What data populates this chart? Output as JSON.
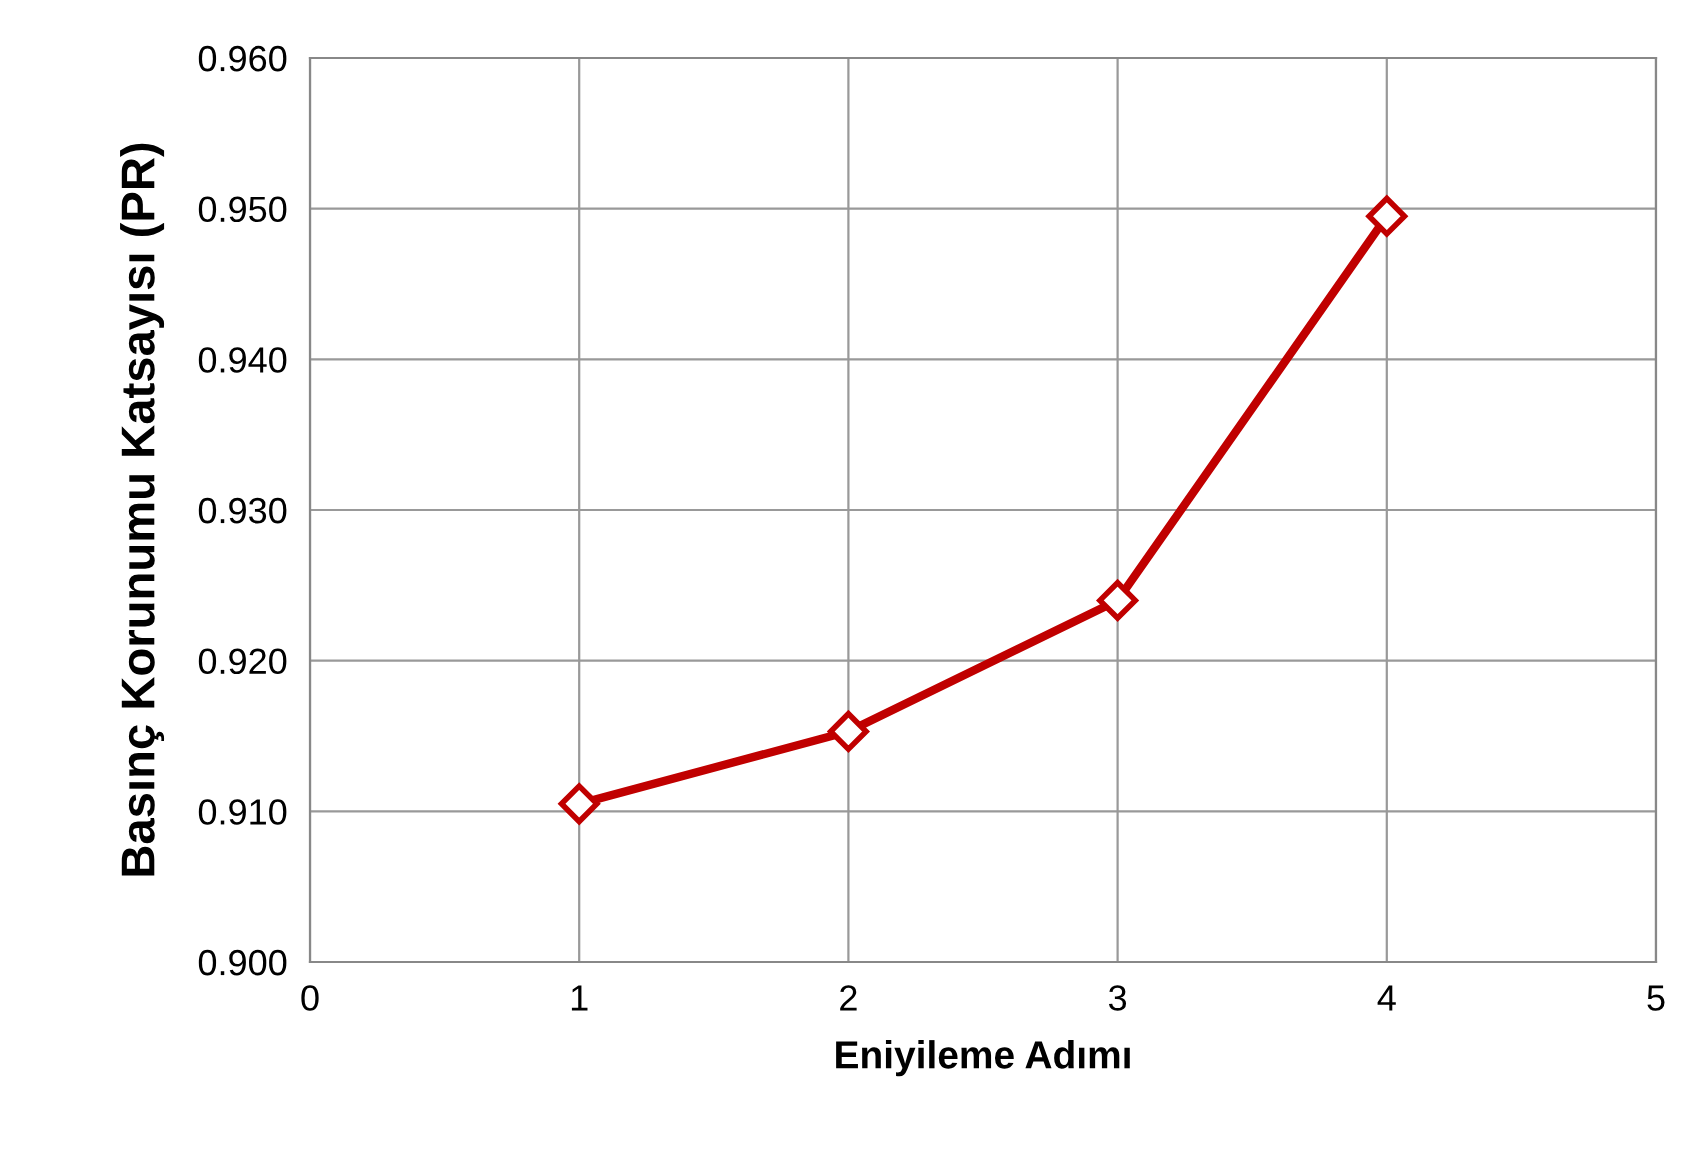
{
  "chart_data": {
    "type": "line",
    "xlabel": "Eniyileme Adımı",
    "ylabel": "Basınç Korunumu Katsayısı (PR)",
    "series": [
      {
        "color": "#c00000",
        "x": [
          1,
          2,
          3,
          4
        ],
        "values": [
          0.9105,
          0.9153,
          0.924,
          0.9495
        ]
      }
    ],
    "xlim": [
      0,
      5
    ],
    "xticks": [
      0,
      1,
      2,
      3,
      4,
      5
    ],
    "ylim": [
      0.9,
      0.96
    ],
    "yticks": [
      {
        "value": 0.9,
        "label": "0.900"
      },
      {
        "value": 0.91,
        "label": "0.910"
      },
      {
        "value": 0.92,
        "label": "0.920"
      },
      {
        "value": 0.93,
        "label": "0.930"
      },
      {
        "value": 0.94,
        "label": "0.940"
      },
      {
        "value": 0.95,
        "label": "0.950"
      },
      {
        "value": 0.96,
        "label": "0.960"
      }
    ],
    "grid": true,
    "marker": "diamond",
    "line_style": "solid",
    "legend": false
  }
}
